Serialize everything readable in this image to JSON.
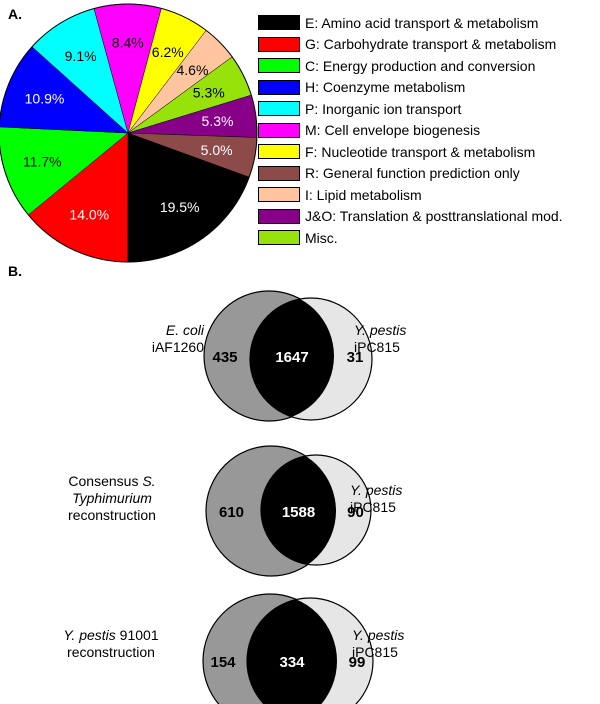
{
  "panels": {
    "a": "A.",
    "b": "B."
  },
  "chart_data": [
    {
      "type": "pie",
      "slices": [
        {
          "legend": "E: Amino acid transport & metabolism",
          "label": "19.5%",
          "value": 19.5,
          "color": "#000000",
          "label_color": "#ffffff"
        },
        {
          "legend": "G: Carbohydrate transport & metabolism",
          "label": "14.0%",
          "value": 14.0,
          "color": "#ff0000",
          "label_color": "#ffffff"
        },
        {
          "legend": "C: Energy production and conversion",
          "label": "11.7%",
          "value": 11.7,
          "color": "#00ff00",
          "label_color": "#000000"
        },
        {
          "legend": "H: Coenzyme metabolism",
          "label": "10.9%",
          "value": 10.9,
          "color": "#0000ff",
          "label_color": "#ffffff"
        },
        {
          "legend": "P: Inorganic ion transport",
          "label": "9.1%",
          "value": 9.1,
          "color": "#00ffff",
          "label_color": "#000000"
        },
        {
          "legend": "M: Cell envelope biogenesis",
          "label": "8.4%",
          "value": 8.4,
          "color": "#ff00ff",
          "label_color": "#000000"
        },
        {
          "legend": "F: Nucleotide transport & metabolism",
          "label": "6.2%",
          "value": 6.2,
          "color": "#ffff00",
          "label_color": "#000000"
        },
        {
          "legend": "I: Lipid metabolism",
          "label": "4.6%",
          "value": 4.6,
          "color": "#ffc59e",
          "label_color": "#000000"
        },
        {
          "legend": "Misc.",
          "label": "5.3%",
          "value": 5.3,
          "color": "#96e20a",
          "label_color": "#000000"
        },
        {
          "legend": "J&O: Translation & posttranslational mod.",
          "label": "5.3%",
          "value": 5.3,
          "color": "#880088",
          "label_color": "#ffffff"
        },
        {
          "legend": "R: General function prediction only",
          "label": "5.0%",
          "value": 5.0,
          "color": "#8c4a48",
          "label_color": "#ffffff"
        }
      ],
      "legend_order": [
        "E",
        "G",
        "C",
        "H",
        "P",
        "M",
        "F",
        "R",
        "I",
        "J&O",
        "Misc."
      ]
    },
    {
      "type": "venn",
      "diagrams": [
        {
          "left_only": "435",
          "overlap": "1647",
          "right_only": "31"
        },
        {
          "left_only": "610",
          "overlap": "1588",
          "right_only": "90"
        },
        {
          "left_only": "154",
          "overlap": "334",
          "right_only": "99"
        }
      ]
    }
  ],
  "venn_labels": {
    "d1_left_italic": "E. coli",
    "d1_left_plain": "iAF1260",
    "d2_left_1": "Consensus ",
    "d2_left_1_italic": "S.",
    "d2_left_2_italic": "Typhimurium",
    "d2_left_3": "reconstruction",
    "d3_left_italic": "Y. pestis",
    "d3_left_plain": " 91001",
    "d3_left_2": "reconstruction",
    "right_italic": "Y. pestis",
    "right_plain": "iPC815"
  },
  "colors": {
    "left_circle": "#989898",
    "right_circle": "#e6e6e6",
    "overlap": "#000000"
  }
}
